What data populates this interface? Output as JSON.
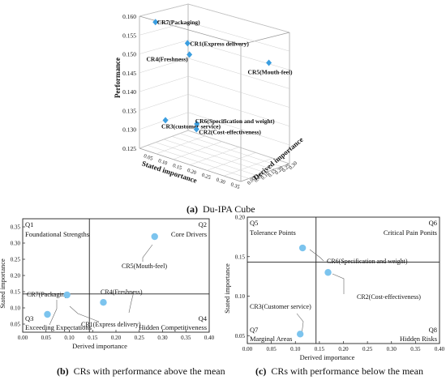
{
  "captions": {
    "a_letter": "(a)",
    "a_text": "Du-IPA Cube",
    "b_letter": "(b)",
    "b_text": "CRs with performance above the mean",
    "c_letter": "(c)",
    "c_text": "CRs with performance below the mean"
  },
  "chart_data": [
    {
      "type": "scatter",
      "panel": "a",
      "title": "Du-IPA Cube",
      "projection": "3d",
      "xlabel": "Stated importance",
      "ylabel": "Derived importance",
      "zlabel": "Performance",
      "zlim": [
        0.125,
        0.16
      ],
      "z_ticks": [
        "0.125",
        "0.130",
        "0.135",
        "0.140",
        "0.145",
        "0.150",
        "0.155",
        "0.160"
      ],
      "x_ticks": [
        "0.05",
        "0.10",
        "0.15",
        "0.20",
        "0.25",
        "0.30",
        "0.35"
      ],
      "y_ticks": [
        "0.00",
        "0.05",
        "0.10",
        "0.15",
        "0.20",
        "0.25",
        "0.30"
      ],
      "points": [
        {
          "label": "CR7(Packaging)",
          "stated": 0.05,
          "derived": 0.05,
          "performance": 0.158
        },
        {
          "label": "CR1(Express delivery)",
          "stated": 0.1,
          "derived": 0.17,
          "performance": 0.152
        },
        {
          "label": "CR4(Freshness)",
          "stated": 0.14,
          "derived": 0.1,
          "performance": 0.151
        },
        {
          "label": "CR5(Mouth-feel)",
          "stated": 0.32,
          "derived": 0.28,
          "performance": 0.151
        },
        {
          "label": "CR6(Specification and weight)",
          "stated": 0.16,
          "derived": 0.11,
          "performance": 0.133
        },
        {
          "label": "CR3(customer service)",
          "stated": 0.05,
          "derived": 0.12,
          "performance": 0.131
        },
        {
          "label": "CR2(Cost-effectiveness)",
          "stated": 0.13,
          "derived": 0.17,
          "performance": 0.13
        }
      ]
    },
    {
      "type": "scatter",
      "panel": "b",
      "title": "CRs with performance above the mean",
      "xlabel": "Derived importance",
      "ylabel": "Stated importance",
      "xlim": [
        0.0,
        0.4
      ],
      "ylim": [
        0.025,
        0.375
      ],
      "x_ticks": [
        "0.00",
        "0.05",
        "0.10",
        "0.15",
        "0.20",
        "0.25",
        "0.30",
        "0.35",
        "0.40"
      ],
      "y_ticks": [
        "0.05",
        "0.10",
        "0.15",
        "0.20",
        "0.25",
        "0.30",
        "0.35"
      ],
      "mean_lines": {
        "x": 0.143,
        "y": 0.143
      },
      "quadrants": [
        {
          "id": "Q1",
          "name": "Foundational Strengths",
          "position": "top-left"
        },
        {
          "id": "Q2",
          "name": "Core Drivers",
          "position": "top-right"
        },
        {
          "id": "Q3",
          "name": "Exceeding Expectations",
          "position": "bottom-left"
        },
        {
          "id": "Q4",
          "name": "Hidden Competitiveness",
          "position": "bottom-right"
        }
      ],
      "points": [
        {
          "label": "CR5(Mouth-feel)",
          "x": 0.283,
          "y": 0.32
        },
        {
          "label": "CR4(Freshness)",
          "x": 0.173,
          "y": 0.117
        },
        {
          "label": "CR7(Packaging)",
          "x": 0.053,
          "y": 0.08
        },
        {
          "label": "CR1(Express delivery)",
          "x": 0.095,
          "y": 0.14
        }
      ]
    },
    {
      "type": "scatter",
      "panel": "c",
      "title": "CRs with performance below the mean",
      "xlabel": "Derived importance",
      "ylabel": "Stated importance",
      "xlim": [
        0.0,
        0.4
      ],
      "ylim": [
        0.04,
        0.2
      ],
      "x_ticks": [
        "0.00",
        "0.05",
        "0.10",
        "0.15",
        "0.20",
        "0.25",
        "0.30",
        "0.35",
        "0.40"
      ],
      "y_ticks": [
        "0.05",
        "0.10",
        "0.15",
        "0.20"
      ],
      "mean_lines": {
        "x": 0.143,
        "y": 0.143
      },
      "quadrants": [
        {
          "id": "Q5",
          "name": "Tolerance Points",
          "position": "top-left"
        },
        {
          "id": "Q6",
          "name": "Critical Pain Ponits",
          "position": "top-right"
        },
        {
          "id": "Q7",
          "name": "Marginal Areas",
          "position": "bottom-left"
        },
        {
          "id": "Q8",
          "name": "Hidden Risks",
          "position": "bottom-right"
        }
      ],
      "points": [
        {
          "label": "CR6(Specification and weight)",
          "x": 0.115,
          "y": 0.161
        },
        {
          "label": "CR2(Cost-effectiveness)",
          "x": 0.168,
          "y": 0.13
        },
        {
          "label": "CR3(Customer service)",
          "x": 0.11,
          "y": 0.052
        }
      ]
    }
  ],
  "colors": {
    "point": "#7cc4ee",
    "point_3d": "#3b9ee0",
    "axis": "#222222",
    "grid": "#cfcfcf"
  }
}
